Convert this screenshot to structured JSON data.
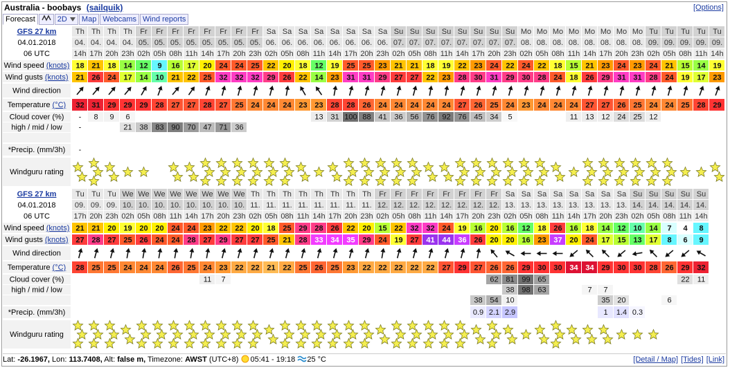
{
  "header": {
    "title": "Australia - boobays",
    "owner": "(sailquik)",
    "options": "[Options]"
  },
  "tabs": [
    "Forecast",
    "2D",
    "Map",
    "Webcams",
    "Wind reports"
  ],
  "blocks": [
    {
      "model": "GFS 27 km",
      "date": "04.01.2018",
      "utc": "06 UTC",
      "labels": {
        "speed": "Wind speed",
        "speed_unit": "(knots)",
        "gusts": "Wind gusts",
        "gusts_unit": "(knots)",
        "direction": "Wind direction",
        "temperature": "Temperature",
        "temperature_unit": "(°C)",
        "cloud": "Cloud cover (%)",
        "cloud_levels": "high / mid / low",
        "precip": "*Precip. (mm/3h)",
        "rating": "Windguru rating"
      },
      "days": [
        "Th",
        "Th",
        "Th",
        "Th",
        "Fr",
        "Fr",
        "Fr",
        "Fr",
        "Fr",
        "Fr",
        "Fr",
        "Fr",
        "Sa",
        "Sa",
        "Sa",
        "Sa",
        "Sa",
        "Sa",
        "Sa",
        "Sa",
        "Su",
        "Su",
        "Su",
        "Su",
        "Su",
        "Su",
        "Su",
        "Su",
        "Mo",
        "Mo",
        "Mo",
        "Mo",
        "Mo",
        "Mo",
        "Mo",
        "Mo",
        "Tu",
        "Tu",
        "Tu",
        "Tu",
        "Tu"
      ],
      "dates": [
        "04.",
        "04.",
        "04.",
        "04.",
        "05.",
        "05.",
        "05.",
        "05.",
        "05.",
        "05.",
        "05.",
        "05.",
        "06.",
        "06.",
        "06.",
        "06.",
        "06.",
        "06.",
        "06.",
        "06.",
        "07.",
        "07.",
        "07.",
        "07.",
        "07.",
        "07.",
        "07.",
        "07.",
        "08.",
        "08.",
        "08.",
        "08.",
        "08.",
        "08.",
        "08.",
        "08.",
        "09.",
        "09.",
        "09.",
        "09.",
        "09."
      ],
      "hours": [
        "14h",
        "17h",
        "20h",
        "23h",
        "02h",
        "05h",
        "08h",
        "11h",
        "14h",
        "17h",
        "20h",
        "23h",
        "02h",
        "05h",
        "08h",
        "11h",
        "14h",
        "17h",
        "20h",
        "23h",
        "02h",
        "05h",
        "08h",
        "11h",
        "14h",
        "17h",
        "20h",
        "23h",
        "02h",
        "05h",
        "08h",
        "11h",
        "14h",
        "17h",
        "20h",
        "23h",
        "02h",
        "05h",
        "08h",
        "11h",
        "14h"
      ],
      "wind_speed": [
        18,
        21,
        18,
        14,
        12,
        9,
        16,
        17,
        20,
        24,
        24,
        25,
        22,
        20,
        18,
        12,
        19,
        25,
        25,
        23,
        21,
        21,
        18,
        19,
        22,
        23,
        24,
        22,
        24,
        22,
        18,
        15,
        21,
        23,
        24,
        23,
        24,
        21,
        15,
        14,
        19
      ],
      "wind_gusts": [
        21,
        26,
        24,
        17,
        14,
        10,
        21,
        22,
        25,
        32,
        32,
        32,
        29,
        26,
        22,
        14,
        23,
        31,
        31,
        29,
        27,
        27,
        22,
        23,
        28,
        30,
        31,
        29,
        30,
        28,
        24,
        18,
        26,
        29,
        31,
        31,
        28,
        24,
        19,
        17,
        23
      ],
      "direction": [
        40,
        40,
        40,
        40,
        30,
        20,
        40,
        35,
        20,
        15,
        15,
        15,
        15,
        10,
        -30,
        -35,
        10,
        15,
        15,
        15,
        15,
        15,
        10,
        10,
        15,
        15,
        15,
        15,
        15,
        15,
        15,
        15,
        15,
        15,
        15,
        15,
        15,
        15,
        15,
        20,
        20
      ],
      "temperature": [
        32,
        31,
        29,
        29,
        29,
        28,
        27,
        27,
        28,
        27,
        25,
        24,
        24,
        24,
        23,
        23,
        28,
        28,
        26,
        24,
        24,
        24,
        24,
        24,
        27,
        26,
        25,
        24,
        23,
        24,
        24,
        24,
        27,
        27,
        26,
        25,
        24,
        24,
        25,
        28,
        29
      ],
      "cloud_high": [
        "-",
        8,
        9,
        6,
        null,
        null,
        null,
        null,
        null,
        null,
        null,
        null,
        null,
        null,
        null,
        13,
        31,
        100,
        88,
        41,
        36,
        56,
        76,
        92,
        76,
        45,
        34,
        5,
        null,
        null,
        null,
        11,
        13,
        12,
        24,
        25,
        12,
        null,
        null,
        null,
        null
      ],
      "cloud_mid": [
        "-",
        null,
        null,
        21,
        38,
        83,
        90,
        70,
        47,
        71,
        36,
        null,
        null,
        null,
        null,
        null,
        null,
        null,
        null,
        null,
        null,
        null,
        null,
        null,
        null,
        null,
        null,
        null,
        null,
        null,
        null,
        null,
        null,
        null,
        null,
        null,
        null,
        null,
        null,
        null,
        null
      ],
      "cloud_low": [
        null,
        null,
        null,
        null,
        null,
        null,
        null,
        null,
        null,
        null,
        null,
        null,
        null,
        null,
        null,
        null,
        null,
        null,
        null,
        null,
        null,
        null,
        null,
        null,
        null,
        null,
        null,
        null,
        null,
        null,
        null,
        null,
        null,
        null,
        null,
        null,
        null,
        null,
        null,
        null,
        null
      ],
      "precip": [
        "-",
        null,
        null,
        null,
        null,
        null,
        null,
        null,
        null,
        null,
        null,
        null,
        null,
        null,
        null,
        null,
        null,
        null,
        null,
        null,
        null,
        null,
        null,
        null,
        null,
        null,
        null,
        null,
        null,
        null,
        null,
        null,
        null,
        null,
        null,
        null,
        null,
        null,
        null,
        null,
        null
      ],
      "rating": [
        2,
        3,
        2,
        1,
        1,
        0,
        2,
        2,
        3,
        3,
        3,
        3,
        3,
        3,
        2,
        1,
        2,
        3,
        3,
        3,
        3,
        3,
        2,
        2,
        3,
        3,
        3,
        3,
        3,
        3,
        2,
        1,
        3,
        3,
        3,
        3,
        3,
        3,
        1,
        1,
        2
      ]
    },
    {
      "model": "GFS 27 km",
      "date": "04.01.2018",
      "utc": "06 UTC",
      "labels": {
        "speed": "Wind speed",
        "speed_unit": "(knots)",
        "gusts": "Wind gusts",
        "gusts_unit": "(knots)",
        "direction": "Wind direction",
        "temperature": "Temperature",
        "temperature_unit": "(°C)",
        "cloud": "Cloud cover (%)",
        "cloud_levels": "high / mid / low",
        "precip": "*Precip. (mm/3h)",
        "rating": "Windguru rating"
      },
      "days": [
        "Tu",
        "Tu",
        "Tu",
        "We",
        "We",
        "We",
        "We",
        "We",
        "We",
        "We",
        "We",
        "Th",
        "Th",
        "Th",
        "Th",
        "Th",
        "Th",
        "Th",
        "Th",
        "Fr",
        "Fr",
        "Fr",
        "Fr",
        "Fr",
        "Fr",
        "Fr",
        "Fr",
        "Sa",
        "Sa",
        "Sa",
        "Sa",
        "Sa",
        "Sa",
        "Sa",
        "Sa",
        "Su",
        "Su",
        "Su",
        "Su",
        "Su"
      ],
      "dates": [
        "09.",
        "09.",
        "09.",
        "10.",
        "10.",
        "10.",
        "10.",
        "10.",
        "10.",
        "10.",
        "10.",
        "11.",
        "11.",
        "11.",
        "11.",
        "11.",
        "11.",
        "11.",
        "11.",
        "12.",
        "12.",
        "12.",
        "12.",
        "12.",
        "12.",
        "12.",
        "12.",
        "13.",
        "13.",
        "13.",
        "13.",
        "13.",
        "13.",
        "13.",
        "13.",
        "14.",
        "14.",
        "14.",
        "14.",
        "14."
      ],
      "hours": [
        "17h",
        "20h",
        "23h",
        "02h",
        "05h",
        "08h",
        "11h",
        "14h",
        "17h",
        "20h",
        "23h",
        "02h",
        "05h",
        "08h",
        "11h",
        "14h",
        "17h",
        "20h",
        "23h",
        "02h",
        "05h",
        "08h",
        "11h",
        "14h",
        "17h",
        "20h",
        "23h",
        "02h",
        "05h",
        "08h",
        "11h",
        "14h",
        "17h",
        "20h",
        "23h",
        "02h",
        "05h",
        "08h",
        "11h",
        "14h"
      ],
      "wind_speed": [
        21,
        21,
        20,
        19,
        20,
        20,
        24,
        24,
        23,
        22,
        22,
        20,
        18,
        25,
        29,
        28,
        26,
        22,
        20,
        15,
        22,
        32,
        32,
        24,
        19,
        16,
        20,
        16,
        12,
        18,
        26,
        16,
        18,
        14,
        12,
        10,
        14,
        7,
        4,
        8
      ],
      "wind_gusts": [
        27,
        28,
        27,
        25,
        26,
        24,
        24,
        28,
        27,
        29,
        27,
        27,
        25,
        21,
        28,
        33,
        34,
        35,
        29,
        24,
        19,
        27,
        41,
        44,
        36,
        26,
        20,
        20,
        16,
        23,
        37,
        20,
        24,
        17,
        15,
        13,
        17,
        8,
        6,
        9
      ],
      "direction": [
        15,
        15,
        15,
        10,
        10,
        10,
        10,
        10,
        10,
        15,
        15,
        15,
        15,
        15,
        15,
        15,
        15,
        15,
        15,
        10,
        15,
        15,
        15,
        15,
        15,
        10,
        -40,
        -60,
        -90,
        -90,
        -90,
        -130,
        -45,
        -45,
        -130,
        -100,
        -45,
        -130,
        -130,
        -60
      ],
      "temperature": [
        28,
        25,
        25,
        24,
        24,
        24,
        26,
        25,
        24,
        23,
        22,
        22,
        21,
        22,
        25,
        26,
        25,
        23,
        22,
        22,
        22,
        22,
        22,
        27,
        29,
        27,
        26,
        26,
        29,
        30,
        30,
        34,
        34,
        29,
        30,
        30,
        28,
        26,
        29,
        32
      ],
      "cloud_high": [
        null,
        null,
        null,
        null,
        null,
        null,
        null,
        null,
        11,
        7,
        null,
        null,
        null,
        null,
        null,
        null,
        null,
        null,
        null,
        null,
        null,
        null,
        null,
        null,
        null,
        null,
        62,
        81,
        99,
        65,
        null,
        null,
        null,
        null,
        null,
        null,
        null,
        null,
        22,
        11
      ],
      "cloud_mid": [
        null,
        null,
        null,
        null,
        null,
        null,
        null,
        null,
        null,
        null,
        null,
        null,
        null,
        null,
        null,
        null,
        null,
        null,
        null,
        null,
        null,
        null,
        null,
        null,
        null,
        null,
        null,
        38,
        98,
        63,
        null,
        null,
        7,
        7,
        null,
        null,
        null,
        null,
        null,
        null
      ],
      "cloud_low": [
        null,
        null,
        null,
        null,
        null,
        null,
        null,
        null,
        null,
        null,
        null,
        null,
        null,
        null,
        null,
        null,
        null,
        null,
        null,
        null,
        null,
        null,
        null,
        null,
        null,
        38,
        54,
        10,
        null,
        null,
        null,
        null,
        null,
        35,
        20,
        null,
        null,
        6,
        null,
        null
      ],
      "precip": [
        null,
        null,
        null,
        null,
        null,
        null,
        null,
        null,
        null,
        null,
        null,
        null,
        null,
        null,
        null,
        null,
        null,
        null,
        null,
        null,
        null,
        null,
        null,
        null,
        null,
        0.9,
        2.1,
        2.9,
        null,
        null,
        null,
        null,
        null,
        1,
        1.4,
        0.3,
        null,
        null,
        null,
        null
      ],
      "rating": [
        3,
        3,
        3,
        2,
        3,
        3,
        3,
        3,
        3,
        3,
        3,
        3,
        2,
        3,
        3,
        3,
        3,
        3,
        3,
        2,
        3,
        3,
        3,
        3,
        3,
        2,
        3,
        2,
        1,
        2,
        3,
        2,
        2,
        2,
        1,
        1,
        1,
        0,
        0,
        0
      ]
    }
  ],
  "footer": {
    "lat_label": "Lat:",
    "lat": "-26.1967,",
    "lon_label": "Lon:",
    "lon": "113.7408,",
    "alt_label": "Alt:",
    "alt": "false m,",
    "tz_label": "Timezone:",
    "tz": "AWST",
    "tz_offset": "(UTC+8)",
    "sun": "05:41 - 19:18",
    "water": "25 °C",
    "links": [
      "[Detail / Map]",
      "[Tides]",
      "[Link]"
    ]
  }
}
